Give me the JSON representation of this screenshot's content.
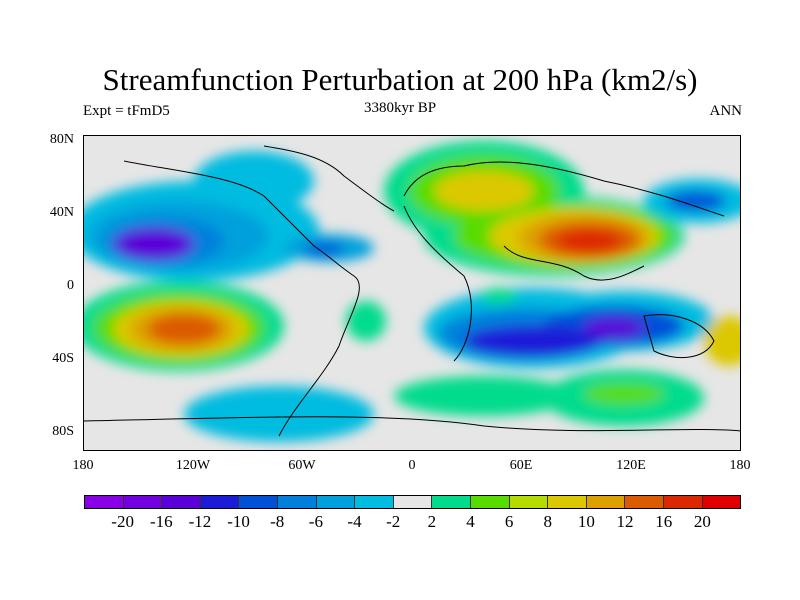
{
  "title": "Streamfunction Perturbation at 200 hPa (km2/s)",
  "left_label": "Expt = tFmD5",
  "center_label": "3380kyr BP",
  "right_label": "ANN",
  "lat_labels": [
    "80N",
    "40N",
    "0",
    "40S",
    "80S"
  ],
  "lon_labels": [
    "180",
    "120W",
    "60W",
    "0",
    "60E",
    "120E",
    "180"
  ],
  "colorbar": {
    "labels": [
      "-20",
      "-16",
      "-12",
      "-10",
      "-8",
      "-6",
      "-4",
      "-2",
      "2",
      "4",
      "6",
      "8",
      "10",
      "12",
      "16",
      "20"
    ],
    "colors": [
      "#8a00e6",
      "#7200e0",
      "#5a00d8",
      "#1c1cd8",
      "#0050d8",
      "#0080dc",
      "#00a0dc",
      "#00bce0",
      "#e6e6e6",
      "#00dc8c",
      "#58dc00",
      "#b4dc00",
      "#dcc800",
      "#dca000",
      "#dc5a00",
      "#dc2800",
      "#e00000"
    ]
  }
}
